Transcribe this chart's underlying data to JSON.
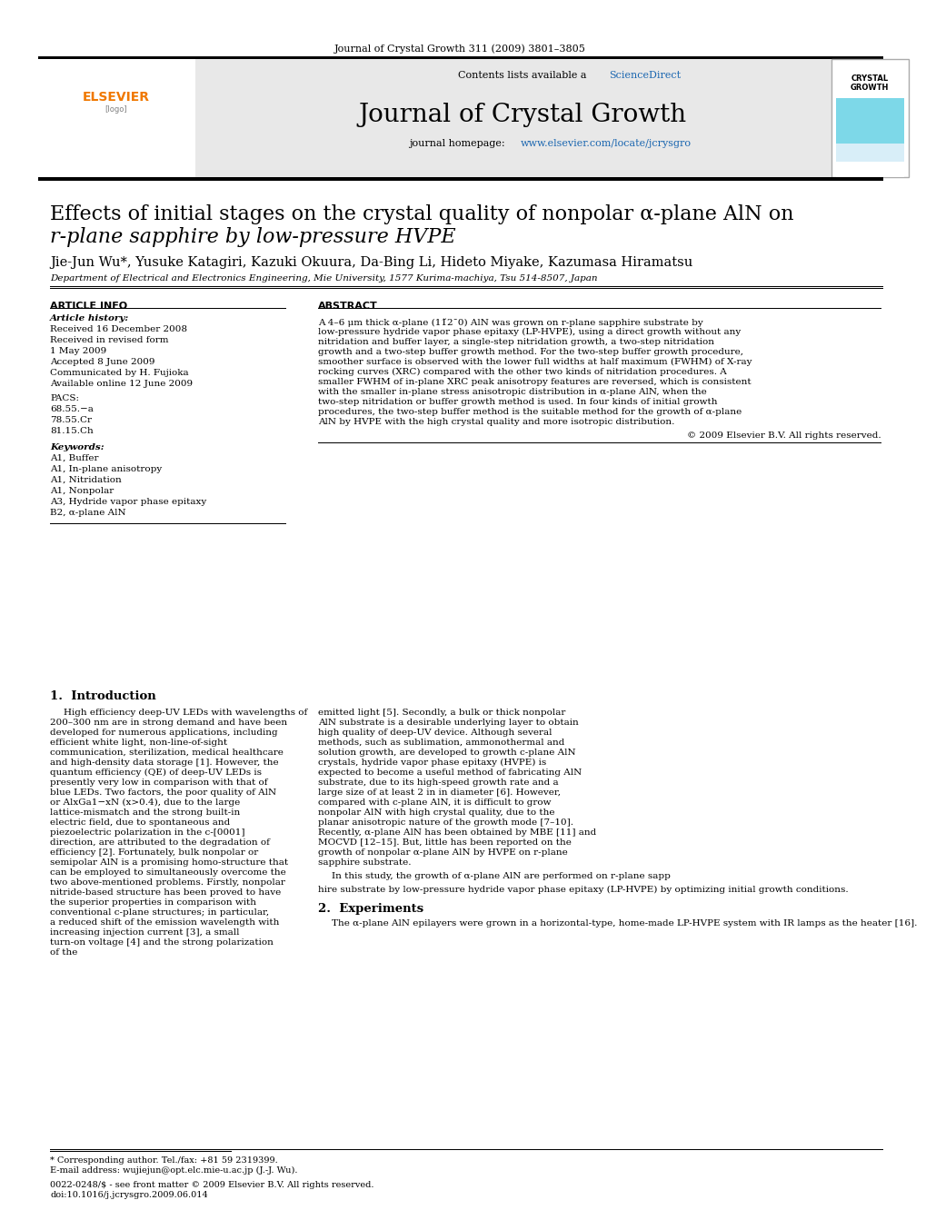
{
  "journal_ref": "Journal of Crystal Growth 311 (2009) 3801–3805",
  "contents_line": "Contents lists available at ScienceDirect",
  "sciencedirect_color": "#f28b00",
  "journal_title": "Journal of Crystal Growth",
  "homepage_line": "journal homepage: www.elsevier.com/locate/jcrysgro",
  "homepage_url_color": "#1a66b0",
  "header_bg": "#e8e8e8",
  "top_bar_color": "#1a1a1a",
  "article_title_line1": "Effects of initial stages on the crystal quality of nonpolar α-plane AlN on",
  "article_title_line2": "’r-plane sapphire by low-pressure HVPE",
  "authors": "Jie-Jun Wu*, Yusuke Katagiri, Kazuki Okuura, Da-Bing Li, Hideto Miyake, Kazumasa Hiramatsu",
  "affiliation": "Department of Electrical and Electronics Engineering, Mie University, 1577 Kurima-machiya, Tsu 514-8507, Japan",
  "article_info_header": "ARTICLE INFO",
  "abstract_header": "ABSTRACT",
  "article_history_label": "Article history:",
  "history_lines": [
    "Received 16 December 2008",
    "Received in revised form",
    "1 May 2009",
    "Accepted 8 June 2009",
    "Communicated by H. Fujioka",
    "Available online 12 June 2009"
  ],
  "pacs_label": "PACS:",
  "pacs_lines": [
    "68.55.−a",
    "78.55.Cr",
    "81.15.Ch"
  ],
  "keywords_label": "Keywords:",
  "keywords_lines": [
    "A1, Buffer",
    "A1, In-plane anisotropy",
    "A1, Nitridation",
    "A1, Nonpolar",
    "A3, Hydride vapor phase epitaxy",
    "B2, α-plane AlN"
  ],
  "abstract_text": "A 4–6 μm thick α-plane (11̆2¯0) AlN was grown on r-plane sapphire substrate by low-pressure hydride vapor phase epitaxy (LP-HVPE), using a direct growth without any nitridation and buffer layer, a single-step nitridation growth, a two-step nitridation growth and a two-step buffer growth method. For the two-step buffer growth procedure, smoother surface is observed with the lower full widths at half maximum (FWHM) of X-ray rocking curves (XRC) compared with the other two kinds of nitridation procedures. A smaller FWHM of in-plane XRC peak anisotropy features are reversed, which is consistent with the smaller in-plane stress anisotropic distribution in α-plane AlN, when the two-step nitridation or buffer growth method is used. In four kinds of initial growth procedures, the two-step buffer method is the suitable method for the growth of α-plane AlN by HVPE with the high crystal quality and more isotropic distribution.",
  "copyright": "© 2009 Elsevier B.V. All rights reserved.",
  "intro_header": "1.  Introduction",
  "intro_left": "High efficiency deep-UV LEDs with wavelengths of 200–300 nm are in strong demand and have been developed for numerous applications, including efficient white light, non-line-of-sight communication, sterilization, medical healthcare and high-density data storage [1]. However, the quantum efficiency (QE) of deep-UV LEDs is presently very low in comparison with that of blue LEDs. Two factors, the poor quality of AlN or AlxGa1−xN (x>0.4), due to the large lattice-mismatch and the strong built-in electric field, due to spontaneous and piezoelectric polarization in the c-[0001] direction, are attributed to the degradation of efficiency [2]. Fortunately, bulk nonpolar or semipolar AlN is a promising homo-structure that can be employed to simultaneously overcome the two above-mentioned problems. Firstly, nonpolar nitride-based structure has been proved to have the superior properties in comparison with conventional c-plane structures; in particular, a reduced shift of the emission wavelength with increasing injection current [3], a small turn-on voltage [4] and the strong polarization of the",
  "intro_right": "emitted light [5]. Secondly, a bulk or thick nonpolar AlN substrate is a desirable underlying layer to obtain high quality of deep-UV device. Although several methods, such as sublimation, ammonothermal and solution growth, are developed to growth c-plane AlN crystals, hydride vapor phase epitaxy (HVPE) is expected to become a useful method of fabricating AlN substrate, due to its high-speed growth rate and a large size of at least 2 in in diameter [6]. However, compared with c-plane AlN, it is difficult to grow nonpolar AlN with high crystal quality, due to the planar anisotropic nature of the growth mode [7–10]. Recently, α-plane AlN has been obtained by MBE [11] and MOCVD [12–15]. But, little has been reported on the growth of nonpolar α-plane AlN by HVPE on r-plane sapphire substrate.",
  "intro_right2": "In this study, the growth of α-plane AlN are performed on r-plane sapphire substrate by low-pressure hydride vapor phase epitaxy (LP-HVPE) by optimizing initial growth conditions.",
  "exp_header": "2.  Experiments",
  "exp_text": "The α-plane AlN epilayers were grown in a horizontal-type, home-made LP-HVPE system with IR lamps as the heater [16].",
  "footnote1": "* Corresponding author. Tel./fax: +81 59 2319399.",
  "footnote2": "E-mail address: wujiejun@opt.elc.mie-u.ac.jp (J.-J. Wu).",
  "footer1": "0022-0248/$ - see front matter © 2009 Elsevier B.V. All rights reserved.",
  "footer2": "doi:10.1016/j.jcrysgro.2009.06.014",
  "bg_color": "#ffffff",
  "text_color": "#000000",
  "divider_color": "#000000",
  "section_header_color": "#000000"
}
